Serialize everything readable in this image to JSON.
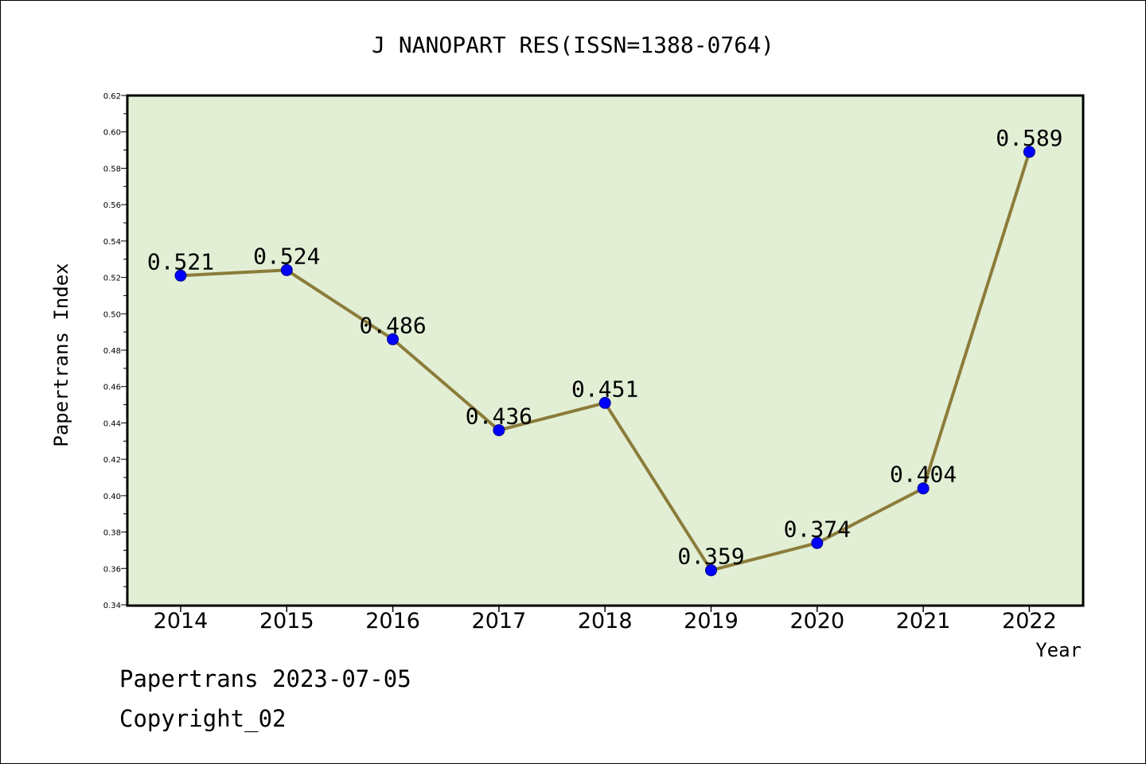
{
  "chart_data": {
    "type": "line",
    "title": "J NANOPART RES(ISSN=1388-0764)",
    "xlabel": "Year",
    "ylabel": "Papertrans Index",
    "categories": [
      "2014",
      "2015",
      "2016",
      "2017",
      "2018",
      "2019",
      "2020",
      "2021",
      "2022"
    ],
    "values": [
      0.521,
      0.524,
      0.486,
      0.436,
      0.451,
      0.359,
      0.374,
      0.404,
      0.589
    ],
    "data_labels": [
      "0.521",
      "0.524",
      "0.486",
      "0.436",
      "0.451",
      "0.359",
      "0.374",
      "0.404",
      "0.589"
    ],
    "ylim": [
      0.34,
      0.62
    ],
    "yticks": [
      "0.34",
      "0.36",
      "0.38",
      "0.40",
      "0.42",
      "0.44",
      "0.46",
      "0.48",
      "0.50",
      "0.52",
      "0.54",
      "0.56",
      "0.58",
      "0.60",
      "0.62"
    ],
    "grid": false,
    "legend": "none",
    "colors": {
      "plot_background": "#e2efd5",
      "line": "#8c7c3a",
      "marker": "#0000ff"
    }
  },
  "footer": {
    "date_text": "Papertrans 2023-07-05",
    "copyright_text": "Copyright_02"
  }
}
